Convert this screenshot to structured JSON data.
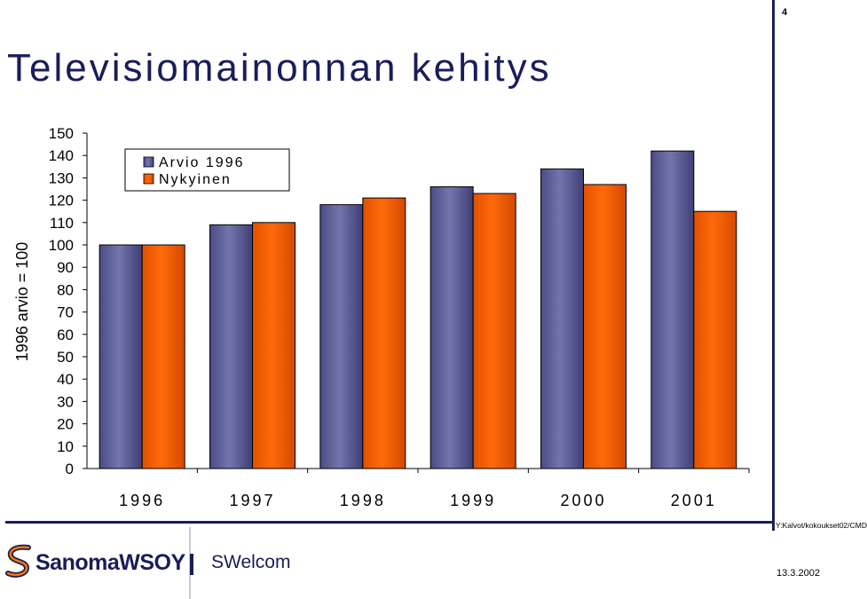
{
  "page_number": "4",
  "title": "Televisiomainonnan kehitys",
  "footer": {
    "path": "Y:Kalvot/kokoukset02/CMD",
    "logo_text": "SanomaWSOY",
    "brand": "SWelcom",
    "date": "13.3.2002"
  },
  "colors": {
    "primary": "#1a1d5a",
    "series_arvio": "#6b6ba6",
    "series_nykyinen": "#ff6600"
  },
  "chart_data": {
    "type": "bar",
    "title": "Televisiomainonnan kehitys",
    "xlabel": "",
    "ylabel": "1996 arvio = 100",
    "ylim": [
      0,
      150
    ],
    "yticks": [
      0,
      10,
      20,
      30,
      40,
      50,
      60,
      70,
      80,
      90,
      100,
      110,
      120,
      130,
      140,
      150
    ],
    "categories": [
      "1996",
      "1997",
      "1998",
      "1999",
      "2000",
      "2001"
    ],
    "series": [
      {
        "name": "Arvio 1996",
        "values": [
          100,
          109,
          118,
          126,
          134,
          142
        ]
      },
      {
        "name": "Nykyinen",
        "values": [
          100,
          110,
          121,
          123,
          127,
          115
        ]
      }
    ],
    "legend": "top-left",
    "grid": false
  }
}
